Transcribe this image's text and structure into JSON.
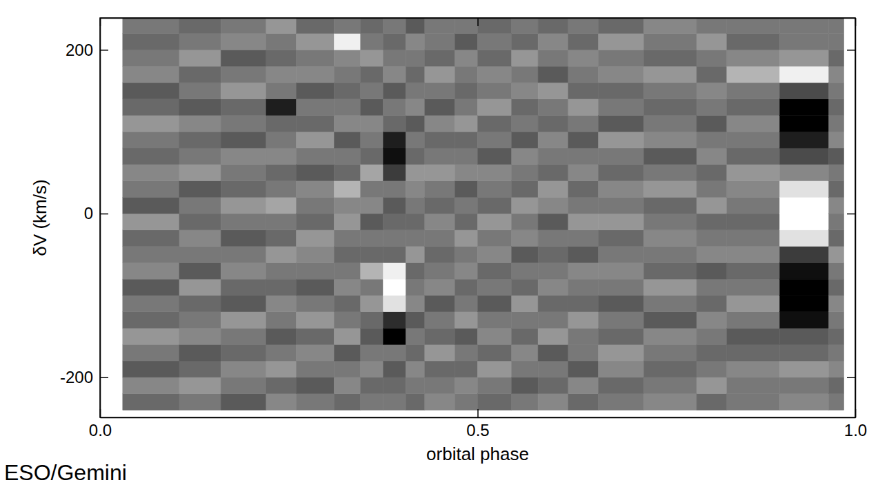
{
  "chart_data": {
    "type": "heatmap",
    "x_label": "orbital phase",
    "y_label": "δV (km/s)",
    "annotation": "ESO/Gemini",
    "xlim": [
      0,
      1
    ],
    "ylim": [
      -249,
      239
    ],
    "xticks": [
      {
        "value": 0,
        "label": "0.0"
      },
      {
        "value": 0.5,
        "label": "0.5"
      },
      {
        "value": 1,
        "label": "1.0"
      }
    ],
    "yticks": [
      -200,
      0,
      200
    ],
    "phase_edges": [
      0.03,
      0.105,
      0.16,
      0.22,
      0.26,
      0.31,
      0.345,
      0.375,
      0.405,
      0.43,
      0.47,
      0.5,
      0.545,
      0.58,
      0.62,
      0.66,
      0.72,
      0.79,
      0.83,
      0.9,
      0.965,
      0.985
    ],
    "v_edges": [
      -240,
      -220,
      -200,
      -180,
      -160,
      -140,
      -120,
      -100,
      -80,
      -60,
      -40,
      -20,
      0,
      20,
      40,
      60,
      80,
      100,
      120,
      140,
      160,
      180,
      200,
      220,
      240
    ],
    "cells": [
      [
        0.45,
        0.55,
        0.4,
        0.5,
        0.6,
        0.45,
        0.5,
        0.4,
        0.55,
        0.5,
        0.45,
        0.6,
        0.4,
        0.5,
        0.55,
        0.45,
        0.5,
        0.6,
        0.45,
        0.4,
        0.55,
        0.5,
        0.45,
        0.5
      ],
      [
        0.5,
        0.6,
        0.45,
        0.4,
        0.55,
        0.5,
        0.45,
        0.6,
        0.4,
        0.5,
        0.55,
        0.45,
        0.5,
        0.4,
        0.6,
        0.5,
        0.45,
        0.55,
        0.4,
        0.5,
        0.45,
        0.6,
        0.5,
        0.45
      ],
      [
        0.4,
        0.5,
        0.55,
        0.45,
        0.5,
        0.6,
        0.4,
        0.45,
        0.55,
        0.5,
        0.4,
        0.5,
        0.6,
        0.45,
        0.5,
        0.55,
        0.4,
        0.5,
        0.45,
        0.6,
        0.5,
        0.4,
        0.55,
        0.5
      ],
      [
        0.55,
        0.45,
        0.6,
        0.5,
        0.4,
        0.5,
        0.55,
        0.45,
        0.5,
        0.6,
        0.45,
        0.5,
        0.65,
        0.5,
        0.45,
        0.55,
        0.5,
        0.45,
        0.2,
        0.5,
        0.55,
        0.45,
        0.5,
        0.6
      ],
      [
        0.5,
        0.4,
        0.5,
        0.55,
        0.45,
        0.6,
        0.5,
        0.4,
        0.5,
        0.55,
        0.6,
        0.45,
        0.5,
        0.55,
        0.4,
        0.5,
        0.6,
        0.45,
        0.5,
        0.4,
        0.55,
        0.5,
        0.6,
        0.45
      ],
      [
        0.45,
        0.55,
        0.5,
        0.4,
        0.6,
        0.5,
        0.45,
        0.55,
        0.5,
        0.45,
        0.5,
        0.6,
        0.55,
        0.7,
        0.45,
        0.5,
        0.4,
        0.55,
        0.5,
        0.45,
        0.5,
        0.55,
        0.9,
        0.5
      ],
      [
        0.5,
        0.45,
        0.55,
        0.5,
        0.4,
        0.45,
        0.6,
        0.5,
        0.7,
        0.45,
        0.5,
        0.4,
        0.55,
        0.5,
        0.65,
        0.45,
        0.5,
        0.55,
        0.4,
        0.5,
        0.45,
        0.6,
        0.5,
        0.45
      ],
      [
        0.5,
        0.45,
        0.4,
        0.5,
        0.1,
        0.25,
        0.85,
        0.95,
        0.9,
        0.45,
        0.5,
        0.45,
        0.4,
        0.5,
        0.3,
        0.15,
        0.2,
        0.45,
        0.5,
        0.4,
        0.55,
        0.5,
        0.45,
        0.5
      ],
      [
        0.45,
        0.5,
        0.55,
        0.45,
        0.5,
        0.4,
        0.55,
        0.5,
        0.45,
        0.6,
        0.5,
        0.45,
        0.5,
        0.55,
        0.6,
        0.45,
        0.5,
        0.4,
        0.55,
        0.5,
        0.45,
        0.5,
        0.55,
        0.4
      ],
      [
        0.55,
        0.5,
        0.45,
        0.6,
        0.45,
        0.5,
        0.4,
        0.55,
        0.5,
        0.45,
        0.5,
        0.55,
        0.45,
        0.5,
        0.6,
        0.5,
        0.45,
        0.55,
        0.4,
        0.5,
        0.6,
        0.45,
        0.5,
        0.5
      ],
      [
        0.5,
        0.55,
        0.45,
        0.5,
        0.4,
        0.6,
        0.5,
        0.45,
        0.55,
        0.5,
        0.6,
        0.45,
        0.5,
        0.4,
        0.55,
        0.5,
        0.45,
        0.6,
        0.5,
        0.45,
        0.5,
        0.55,
        0.4,
        0.5
      ],
      [
        0.45,
        0.5,
        0.6,
        0.45,
        0.55,
        0.5,
        0.4,
        0.5,
        0.45,
        0.55,
        0.5,
        0.6,
        0.45,
        0.5,
        0.55,
        0.4,
        0.5,
        0.45,
        0.6,
        0.5,
        0.55,
        0.45,
        0.5,
        0.45
      ],
      [
        0.5,
        0.4,
        0.5,
        0.55,
        0.45,
        0.5,
        0.6,
        0.45,
        0.5,
        0.4,
        0.55,
        0.5,
        0.6,
        0.45,
        0.5,
        0.55,
        0.4,
        0.5,
        0.45,
        0.55,
        0.5,
        0.6,
        0.45,
        0.5
      ],
      [
        0.55,
        0.45,
        0.5,
        0.4,
        0.6,
        0.5,
        0.45,
        0.55,
        0.5,
        0.45,
        0.5,
        0.4,
        0.55,
        0.6,
        0.45,
        0.5,
        0.55,
        0.45,
        0.5,
        0.6,
        0.4,
        0.5,
        0.55,
        0.45
      ],
      [
        0.45,
        0.55,
        0.4,
        0.5,
        0.5,
        0.6,
        0.45,
        0.5,
        0.55,
        0.4,
        0.5,
        0.6,
        0.5,
        0.45,
        0.55,
        0.5,
        0.4,
        0.5,
        0.6,
        0.45,
        0.5,
        0.55,
        0.45,
        0.5
      ],
      [
        0.5,
        0.45,
        0.55,
        0.6,
        0.45,
        0.5,
        0.4,
        0.5,
        0.55,
        0.5,
        0.45,
        0.6,
        0.5,
        0.55,
        0.45,
        0.5,
        0.6,
        0.4,
        0.5,
        0.45,
        0.55,
        0.5,
        0.6,
        0.45
      ],
      [
        0.55,
        0.5,
        0.45,
        0.5,
        0.55,
        0.4,
        0.5,
        0.6,
        0.45,
        0.5,
        0.55,
        0.5,
        0.45,
        0.6,
        0.5,
        0.4,
        0.55,
        0.5,
        0.45,
        0.5,
        0.6,
        0.45,
        0.5,
        0.55
      ],
      [
        0.45,
        0.6,
        0.5,
        0.45,
        0.5,
        0.55,
        0.45,
        0.5,
        0.4,
        0.55,
        0.5,
        0.45,
        0.6,
        0.5,
        0.45,
        0.55,
        0.5,
        0.4,
        0.5,
        0.55,
        0.45,
        0.5,
        0.6,
        0.5
      ],
      [
        0.5,
        0.5,
        0.55,
        0.45,
        0.4,
        0.5,
        0.6,
        0.5,
        0.45,
        0.55,
        0.5,
        0.45,
        0.5,
        0.55,
        0.6,
        0.45,
        0.5,
        0.55,
        0.45,
        0.5,
        0.7,
        0.55,
        0.45,
        0.5
      ],
      [
        0.55,
        0.5,
        0.6,
        0.45,
        0.4,
        0.15,
        0.1,
        0.1,
        0.15,
        0.3,
        0.85,
        0.95,
        0.95,
        0.85,
        0.55,
        0.35,
        0.2,
        0.1,
        0.1,
        0.35,
        0.9,
        0.6,
        0.5,
        0.5
      ],
      [
        0.5,
        0.45,
        0.55,
        0.5,
        0.45,
        0.5,
        0.55,
        0.45,
        0.5,
        0.6,
        0.45,
        0.5,
        0.55,
        0.45,
        0.5,
        0.4,
        0.55,
        0.5,
        0.45,
        0.5,
        0.55,
        0.45,
        0.5,
        0.5
      ]
    ]
  }
}
